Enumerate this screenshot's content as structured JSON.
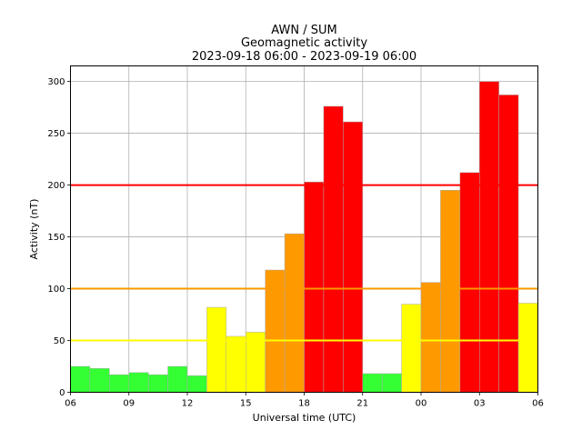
{
  "chart_data": {
    "type": "bar",
    "title_lines": [
      "AWN / SUM",
      "Geomagnetic activity",
      "2023-09-18 06:00 - 2023-09-19 06:00"
    ],
    "xlabel": "Universal time (UTC)",
    "ylabel": "Activity (nT)",
    "x_tick_labels": [
      "06",
      "09",
      "12",
      "15",
      "18",
      "21",
      "00",
      "03",
      "06"
    ],
    "y_ticks": [
      0,
      50,
      100,
      150,
      200,
      250,
      300
    ],
    "ylim": [
      0,
      315
    ],
    "xlim_hours": [
      0,
      24
    ],
    "grid": true,
    "legend": "none",
    "bars": [
      {
        "start_hour": 0,
        "value": 25,
        "level": "green"
      },
      {
        "start_hour": 1,
        "value": 23,
        "level": "green"
      },
      {
        "start_hour": 2,
        "value": 17,
        "level": "green"
      },
      {
        "start_hour": 3,
        "value": 19,
        "level": "green"
      },
      {
        "start_hour": 4,
        "value": 17,
        "level": "green"
      },
      {
        "start_hour": 5,
        "value": 25,
        "level": "green"
      },
      {
        "start_hour": 6,
        "value": 16,
        "level": "green"
      },
      {
        "start_hour": 7,
        "value": 82,
        "level": "yellow"
      },
      {
        "start_hour": 8,
        "value": 54,
        "level": "yellow"
      },
      {
        "start_hour": 9,
        "value": 58,
        "level": "yellow"
      },
      {
        "start_hour": 10,
        "value": 118,
        "level": "orange"
      },
      {
        "start_hour": 11,
        "value": 153,
        "level": "orange"
      },
      {
        "start_hour": 12,
        "value": 203,
        "level": "red"
      },
      {
        "start_hour": 13,
        "value": 276,
        "level": "red"
      },
      {
        "start_hour": 14,
        "value": 261,
        "level": "red"
      },
      {
        "start_hour": 15,
        "value": 18,
        "level": "green"
      },
      {
        "start_hour": 16,
        "value": 18,
        "level": "green"
      },
      {
        "start_hour": 17,
        "value": 85,
        "level": "yellow"
      },
      {
        "start_hour": 18,
        "value": 106,
        "level": "orange"
      },
      {
        "start_hour": 19,
        "value": 195,
        "level": "orange"
      },
      {
        "start_hour": 20,
        "value": 212,
        "level": "red"
      },
      {
        "start_hour": 21,
        "value": 300,
        "level": "red"
      },
      {
        "start_hour": 22,
        "value": 287,
        "level": "red"
      },
      {
        "start_hour": 23,
        "value": 86,
        "level": "yellow"
      }
    ],
    "thresholds": [
      {
        "value": 50,
        "color": "#ffff00"
      },
      {
        "value": 100,
        "color": "#ff9900"
      },
      {
        "value": 200,
        "color": "#ff0000"
      }
    ],
    "level_colors": {
      "green": "#33ff33",
      "yellow": "#ffff00",
      "orange": "#ff9900",
      "red": "#ff0000"
    }
  }
}
